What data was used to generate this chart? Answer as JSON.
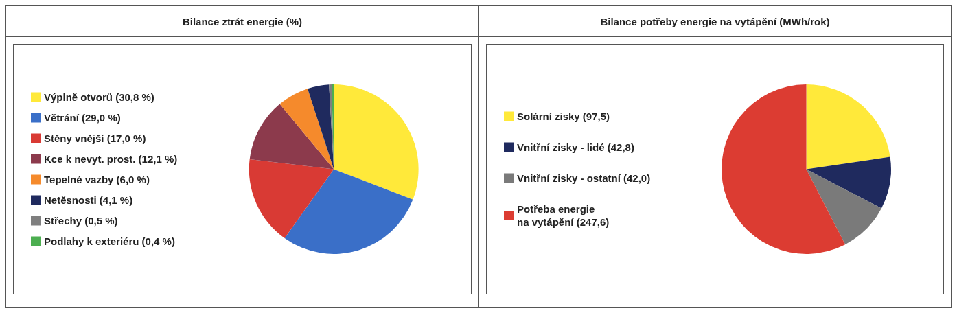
{
  "chart_data": [
    {
      "type": "pie",
      "title": "Bilance ztrát energie (%)",
      "legend": "left",
      "categories": [
        "Výplně otvorů (30,8 %)",
        "Větrání (29,0 %)",
        "Stěny vnější (17,0 %)",
        "Kce k nevyt. prost. (12,1 %)",
        "Tepelné vazby (6,0 %)",
        "Netěsnosti (4,1 %)",
        "Střechy (0,5 %)",
        "Podlahy k exteriéru (0,4 %)"
      ],
      "values": [
        30.8,
        29.0,
        17.0,
        12.1,
        6.0,
        4.1,
        0.5,
        0.4
      ],
      "colors": [
        "#ffe93a",
        "#3a6fc8",
        "#d93a34",
        "#8c3a4c",
        "#f58a2c",
        "#1f2a5e",
        "#7f7f7f",
        "#4cae50"
      ]
    },
    {
      "type": "pie",
      "title": "Bilance potřeby energie na vytápění (MWh/rok)",
      "legend": "left",
      "categories": [
        "Solární zisky (97,5)",
        "Vnitřní zisky - lidé (42,8)",
        "Vnitřní zisky - ostatní (42,0)",
        "Potřeba energie\nna vytápění (247,6)"
      ],
      "values": [
        97.5,
        42.8,
        42.0,
        247.6
      ],
      "colors": [
        "#ffe93a",
        "#1f2a5e",
        "#7a7a7a",
        "#dc3c32"
      ]
    }
  ]
}
